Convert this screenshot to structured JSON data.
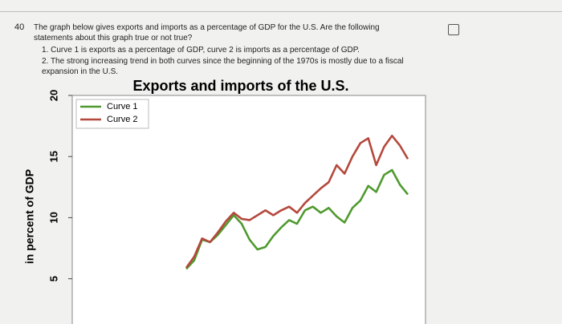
{
  "question": {
    "number": "40",
    "text": "The graph below gives exports and imports as a percentage of GDP for the U.S. Are the following statements about this graph true or not true?",
    "statements": [
      "1. Curve 1 is exports as a percentage of GDP, curve 2 is imports as a percentage of GDP.",
      "2. The strong increasing trend in both curves since the beginning of the 1970s is mostly due to a fiscal expansion in the U.S."
    ]
  },
  "chart_data": {
    "type": "line",
    "title": "Exports and imports of the U.S.",
    "y_label": "in percent of GDP",
    "categories": [
      null,
      null,
      null,
      null,
      null,
      null,
      null,
      null,
      null,
      null,
      null,
      null,
      null,
      null,
      null,
      null,
      null,
      null,
      null,
      null,
      null,
      null,
      null,
      null,
      null,
      null,
      null,
      null,
      null
    ],
    "series": [
      {
        "name": "Curve 1",
        "color": "#4f9a2e",
        "values": [
          5.8,
          6.5,
          8.2,
          8.0,
          8.6,
          9.4,
          10.2,
          9.5,
          8.2,
          7.4,
          7.6,
          8.5,
          9.2,
          9.8,
          9.5,
          10.6,
          10.9,
          10.4,
          10.8,
          10.1,
          9.6,
          10.8,
          11.4,
          12.6,
          12.1,
          13.5,
          13.9,
          12.7,
          11.9
        ]
      },
      {
        "name": "Curve 2",
        "color": "#b5483c",
        "values": [
          5.9,
          6.8,
          8.3,
          8.0,
          8.8,
          9.7,
          10.4,
          9.9,
          9.8,
          10.2,
          10.6,
          10.2,
          10.6,
          10.9,
          10.4,
          11.2,
          11.8,
          12.4,
          12.9,
          14.3,
          13.6,
          15.0,
          16.1,
          16.5,
          14.3,
          15.8,
          16.7,
          15.9,
          14.8
        ]
      }
    ],
    "ylim": [
      1.3,
      20
    ],
    "yticks": [
      5,
      10,
      15,
      20
    ],
    "legend": "upper left"
  }
}
